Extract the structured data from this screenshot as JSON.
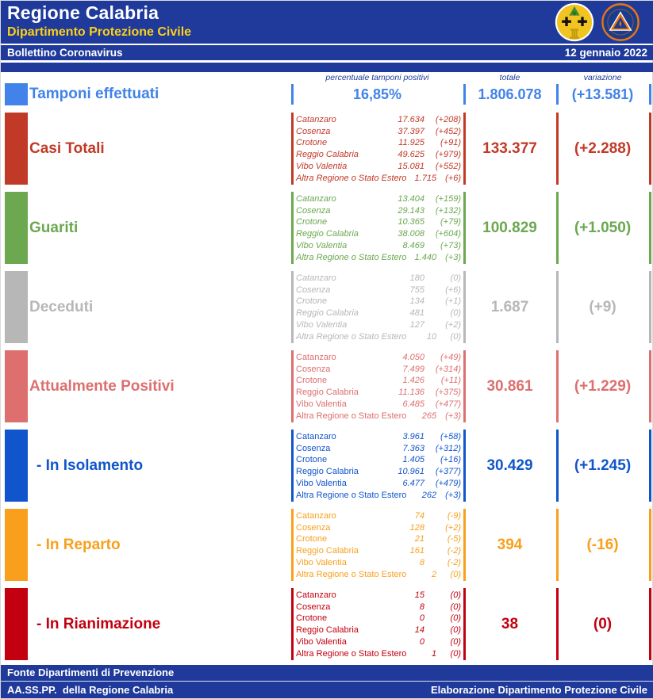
{
  "header": {
    "title": "Regione Calabria",
    "subtitle": "Dipartimento Protezione Civile",
    "bulletin_label": "Bollettino Coronavirus",
    "date": "12 gennaio 2022"
  },
  "column_headers": {
    "percent": "percentuale tamponi positivi",
    "total": "totale",
    "variation": "variazione"
  },
  "colors": {
    "header_blue": "#1F3A9B",
    "header_yellow": "#FCD116",
    "tamponi_blue": "#4183E9",
    "casi_totali_red": "#C13A27",
    "guariti_green": "#6BA84F",
    "deceduti_gray": "#B7B7B7",
    "attualmente_positivi_rose": "#DD6F6F",
    "isolamento_blue": "#1155CC",
    "reparto_orange": "#F8A01D",
    "rianimazione_dark_red": "#C2000F"
  },
  "icons": {
    "region_logo": "calabria-region-logo",
    "civil_protection_logo": "protezione-civile-logo"
  },
  "tamponi": {
    "label": "Tamponi effettuati",
    "color": "#4183E9",
    "percent": "16,85%",
    "total": "1.806.078",
    "variation": "(+13.581)"
  },
  "provinces": [
    "Catanzaro",
    "Cosenza",
    "Crotone",
    "Reggio Calabria",
    "Vibo Valentia",
    "Altra Regione o Stato Estero"
  ],
  "rows": [
    {
      "label": "Casi Totali",
      "color": "#C13A27",
      "italic_names": true,
      "sub": false,
      "total": "133.377",
      "variation": "(+2.288)",
      "values": [
        "17.634",
        "37.397",
        "11.925",
        "49.625",
        "15.081",
        "1.715"
      ],
      "variations": [
        "(+208)",
        "(+452)",
        "(+91)",
        "(+979)",
        "(+552)",
        "(+6)"
      ]
    },
    {
      "label": "Guariti",
      "color": "#6BA84F",
      "italic_names": true,
      "sub": false,
      "total": "100.829",
      "variation": "(+1.050)",
      "values": [
        "13.404",
        "29.143",
        "10.365",
        "38.008",
        "8.469",
        "1.440"
      ],
      "variations": [
        "(+159)",
        "(+132)",
        "(+79)",
        "(+604)",
        "(+73)",
        "(+3)"
      ]
    },
    {
      "label": "Deceduti",
      "color": "#B7B7B7",
      "italic_names": true,
      "sub": false,
      "total": "1.687",
      "variation": "(+9)",
      "values": [
        "180",
        "755",
        "134",
        "481",
        "127",
        "10"
      ],
      "variations": [
        "(0)",
        "(+6)",
        "(+1)",
        "(0)",
        "(+2)",
        "(0)"
      ]
    },
    {
      "label": "Attualmente Positivi",
      "color": "#DD6F6F",
      "italic_names": false,
      "sub": false,
      "total": "30.861",
      "variation": "(+1.229)",
      "values": [
        "4.050",
        "7.499",
        "1.426",
        "11.136",
        "6.485",
        "265"
      ],
      "variations": [
        "(+49)",
        "(+314)",
        "(+11)",
        "(+375)",
        "(+477)",
        "(+3)"
      ]
    },
    {
      "label": "- In Isolamento",
      "color": "#1155CC",
      "italic_names": false,
      "sub": true,
      "total": "30.429",
      "variation": "(+1.245)",
      "values": [
        "3.961",
        "7.363",
        "1.405",
        "10.961",
        "6.477",
        "262"
      ],
      "variations": [
        "(+58)",
        "(+312)",
        "(+16)",
        "(+377)",
        "(+479)",
        "(+3)"
      ]
    },
    {
      "label": "- In Reparto",
      "color": "#F8A01D",
      "italic_names": false,
      "sub": true,
      "total": "394",
      "variation": "(-16)",
      "values": [
        "74",
        "128",
        "21",
        "161",
        "8",
        "2"
      ],
      "variations": [
        "(-9)",
        "(+2)",
        "(-5)",
        "(-2)",
        "(-2)",
        "(0)"
      ]
    },
    {
      "label": "- In Rianimazione",
      "color": "#C2000F",
      "italic_names": false,
      "sub": true,
      "total": "38",
      "variation": "(0)",
      "values": [
        "15",
        "8",
        "0",
        "14",
        "0",
        "1"
      ],
      "variations": [
        "(0)",
        "(0)",
        "(0)",
        "(0)",
        "(0)",
        "(0)"
      ]
    }
  ],
  "footer": {
    "source_line1": "Fonte Dipartimenti di Prevenzione",
    "source_line2": "AA.SS.PP.  della Regione Calabria",
    "elaboration": "Elaborazione Dipartimento Protezione Civile"
  }
}
